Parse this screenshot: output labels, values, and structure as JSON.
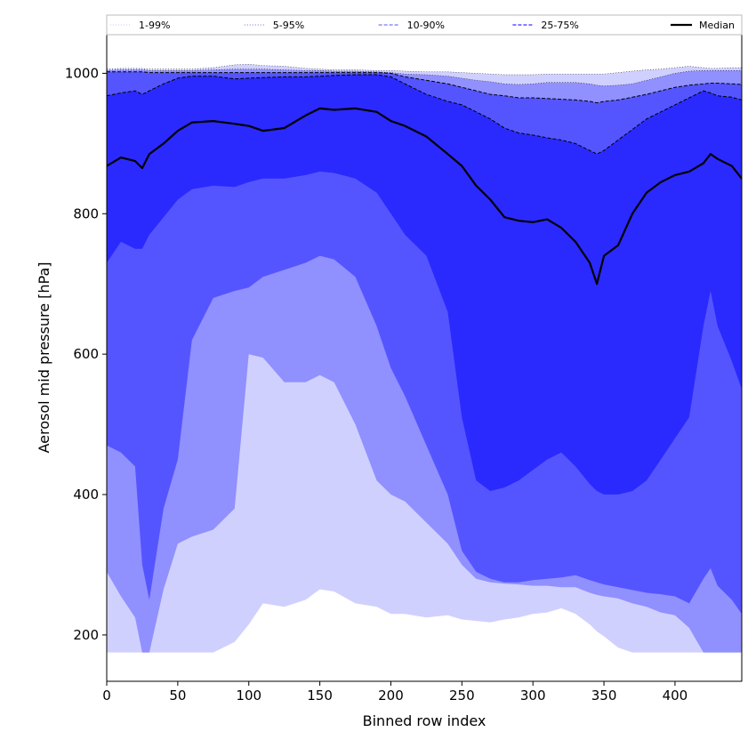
{
  "chart_data": {
    "type": "area",
    "title": "",
    "xlabel": "Binned row index",
    "ylabel": "Aerosol mid pressure [hPa]",
    "xlim": [
      0,
      447
    ],
    "ylim": [
      134,
      1055
    ],
    "x_ticks": [
      0,
      50,
      100,
      150,
      200,
      250,
      300,
      350,
      400
    ],
    "y_ticks": [
      200,
      400,
      600,
      800,
      1000
    ],
    "x_tick_labels": [
      "0",
      "50",
      "100",
      "150",
      "200",
      "250",
      "300",
      "350",
      "400"
    ],
    "y_tick_labels": [
      "200",
      "400",
      "600",
      "800",
      "1000"
    ],
    "legend_position": "top, spanning plot width",
    "legend": [
      {
        "label": "1-99%",
        "color": "#d0d0fc",
        "style": "dotted"
      },
      {
        "label": "5-95%",
        "color": "#8888ee",
        "style": "dotted"
      },
      {
        "label": "10-90%",
        "color": "#7777ff",
        "style": "dashed"
      },
      {
        "label": "25-75%",
        "color": "#3333ff",
        "style": "dashed"
      },
      {
        "label": "Median",
        "color": "#000000",
        "style": "solid"
      }
    ],
    "series_colors": {
      "band_1_99": "#d0d0ff",
      "band_5_95": "#9090ff",
      "band_10_90": "#5555ff",
      "band_25_75": "#2a2aff",
      "median": "#000000"
    },
    "x": [
      0,
      10,
      20,
      25,
      30,
      40,
      50,
      60,
      75,
      90,
      100,
      110,
      125,
      140,
      150,
      160,
      175,
      190,
      200,
      210,
      225,
      240,
      250,
      260,
      270,
      280,
      290,
      300,
      310,
      320,
      330,
      340,
      345,
      350,
      360,
      370,
      380,
      390,
      400,
      410,
      420,
      425,
      430,
      440,
      447
    ],
    "bands": [
      {
        "name": "1-99%",
        "lower": [
          175,
          175,
          175,
          175,
          175,
          175,
          175,
          175,
          175,
          190,
          215,
          245,
          240,
          250,
          265,
          262,
          245,
          240,
          230,
          230,
          225,
          228,
          222,
          220,
          218,
          222,
          225,
          230,
          232,
          238,
          230,
          215,
          205,
          198,
          182,
          175,
          175,
          175,
          175,
          175,
          175,
          175,
          175,
          175,
          175
        ],
        "upper": [
          1006,
          1007,
          1007,
          1007,
          1006,
          1006,
          1006,
          1006,
          1008,
          1012,
          1013,
          1011,
          1010,
          1007,
          1006,
          1005,
          1005,
          1004,
          1004,
          1003,
          1002,
          1002,
          1001,
          1000,
          999,
          998,
          998,
          998,
          999,
          999,
          999,
          999,
          999,
          999,
          1001,
          1003,
          1005,
          1006,
          1008,
          1010,
          1008,
          1007,
          1007,
          1008,
          1008
        ]
      },
      {
        "name": "5-95%",
        "lower": [
          290,
          255,
          225,
          175,
          175,
          265,
          330,
          340,
          350,
          380,
          600,
          595,
          560,
          560,
          570,
          560,
          500,
          420,
          400,
          390,
          360,
          330,
          300,
          280,
          275,
          273,
          272,
          270,
          270,
          268,
          268,
          260,
          257,
          255,
          252,
          245,
          240,
          232,
          228,
          210,
          175,
          175,
          175,
          175,
          175
        ],
        "upper": [
          1004,
          1005,
          1005,
          1005,
          1004,
          1004,
          1004,
          1004,
          1005,
          1006,
          1006,
          1006,
          1005,
          1004,
          1004,
          1003,
          1003,
          1002,
          1001,
          999,
          998,
          996,
          993,
          990,
          988,
          985,
          984,
          985,
          987,
          987,
          987,
          985,
          983,
          982,
          983,
          985,
          990,
          995,
          1000,
          1003,
          1004,
          1004,
          1004,
          1004,
          1004
        ]
      },
      {
        "name": "10-90%",
        "lower": [
          470,
          460,
          440,
          300,
          250,
          380,
          450,
          620,
          680,
          690,
          695,
          710,
          720,
          730,
          740,
          735,
          710,
          640,
          580,
          540,
          470,
          400,
          320,
          290,
          280,
          275,
          275,
          278,
          280,
          282,
          285,
          278,
          275,
          272,
          268,
          264,
          260,
          258,
          255,
          245,
          280,
          295,
          270,
          250,
          230
        ],
        "upper": [
          1002,
          1002,
          1002,
          1002,
          1001,
          1001,
          1001,
          1001,
          1001,
          1001,
          1001,
          1001,
          1001,
          1001,
          1001,
          1001,
          1001,
          1001,
          1000,
          995,
          990,
          985,
          980,
          975,
          970,
          968,
          965,
          965,
          964,
          963,
          962,
          960,
          958,
          960,
          962,
          966,
          970,
          975,
          980,
          983,
          985,
          986,
          986,
          985,
          984
        ]
      },
      {
        "name": "25-75%",
        "lower": [
          730,
          760,
          750,
          750,
          770,
          795,
          820,
          835,
          840,
          838,
          845,
          850,
          850,
          855,
          860,
          858,
          850,
          830,
          800,
          770,
          740,
          660,
          510,
          420,
          405,
          410,
          420,
          435,
          450,
          460,
          440,
          415,
          405,
          400,
          400,
          405,
          420,
          450,
          480,
          510,
          640,
          690,
          640,
          590,
          550
        ],
        "upper": [
          968,
          972,
          975,
          970,
          975,
          985,
          993,
          996,
          996,
          992,
          993,
          994,
          995,
          995,
          996,
          997,
          998,
          998,
          995,
          985,
          970,
          960,
          955,
          945,
          935,
          922,
          915,
          912,
          908,
          905,
          900,
          890,
          885,
          890,
          905,
          920,
          935,
          945,
          955,
          965,
          975,
          972,
          968,
          966,
          962
        ]
      }
    ],
    "median": [
      868,
      880,
      875,
      865,
      885,
      900,
      918,
      930,
      932,
      928,
      925,
      918,
      922,
      940,
      950,
      948,
      950,
      945,
      932,
      925,
      910,
      885,
      868,
      840,
      820,
      795,
      790,
      788,
      792,
      780,
      760,
      730,
      700,
      740,
      755,
      800,
      830,
      845,
      855,
      860,
      872,
      885,
      878,
      868,
      850
    ]
  }
}
